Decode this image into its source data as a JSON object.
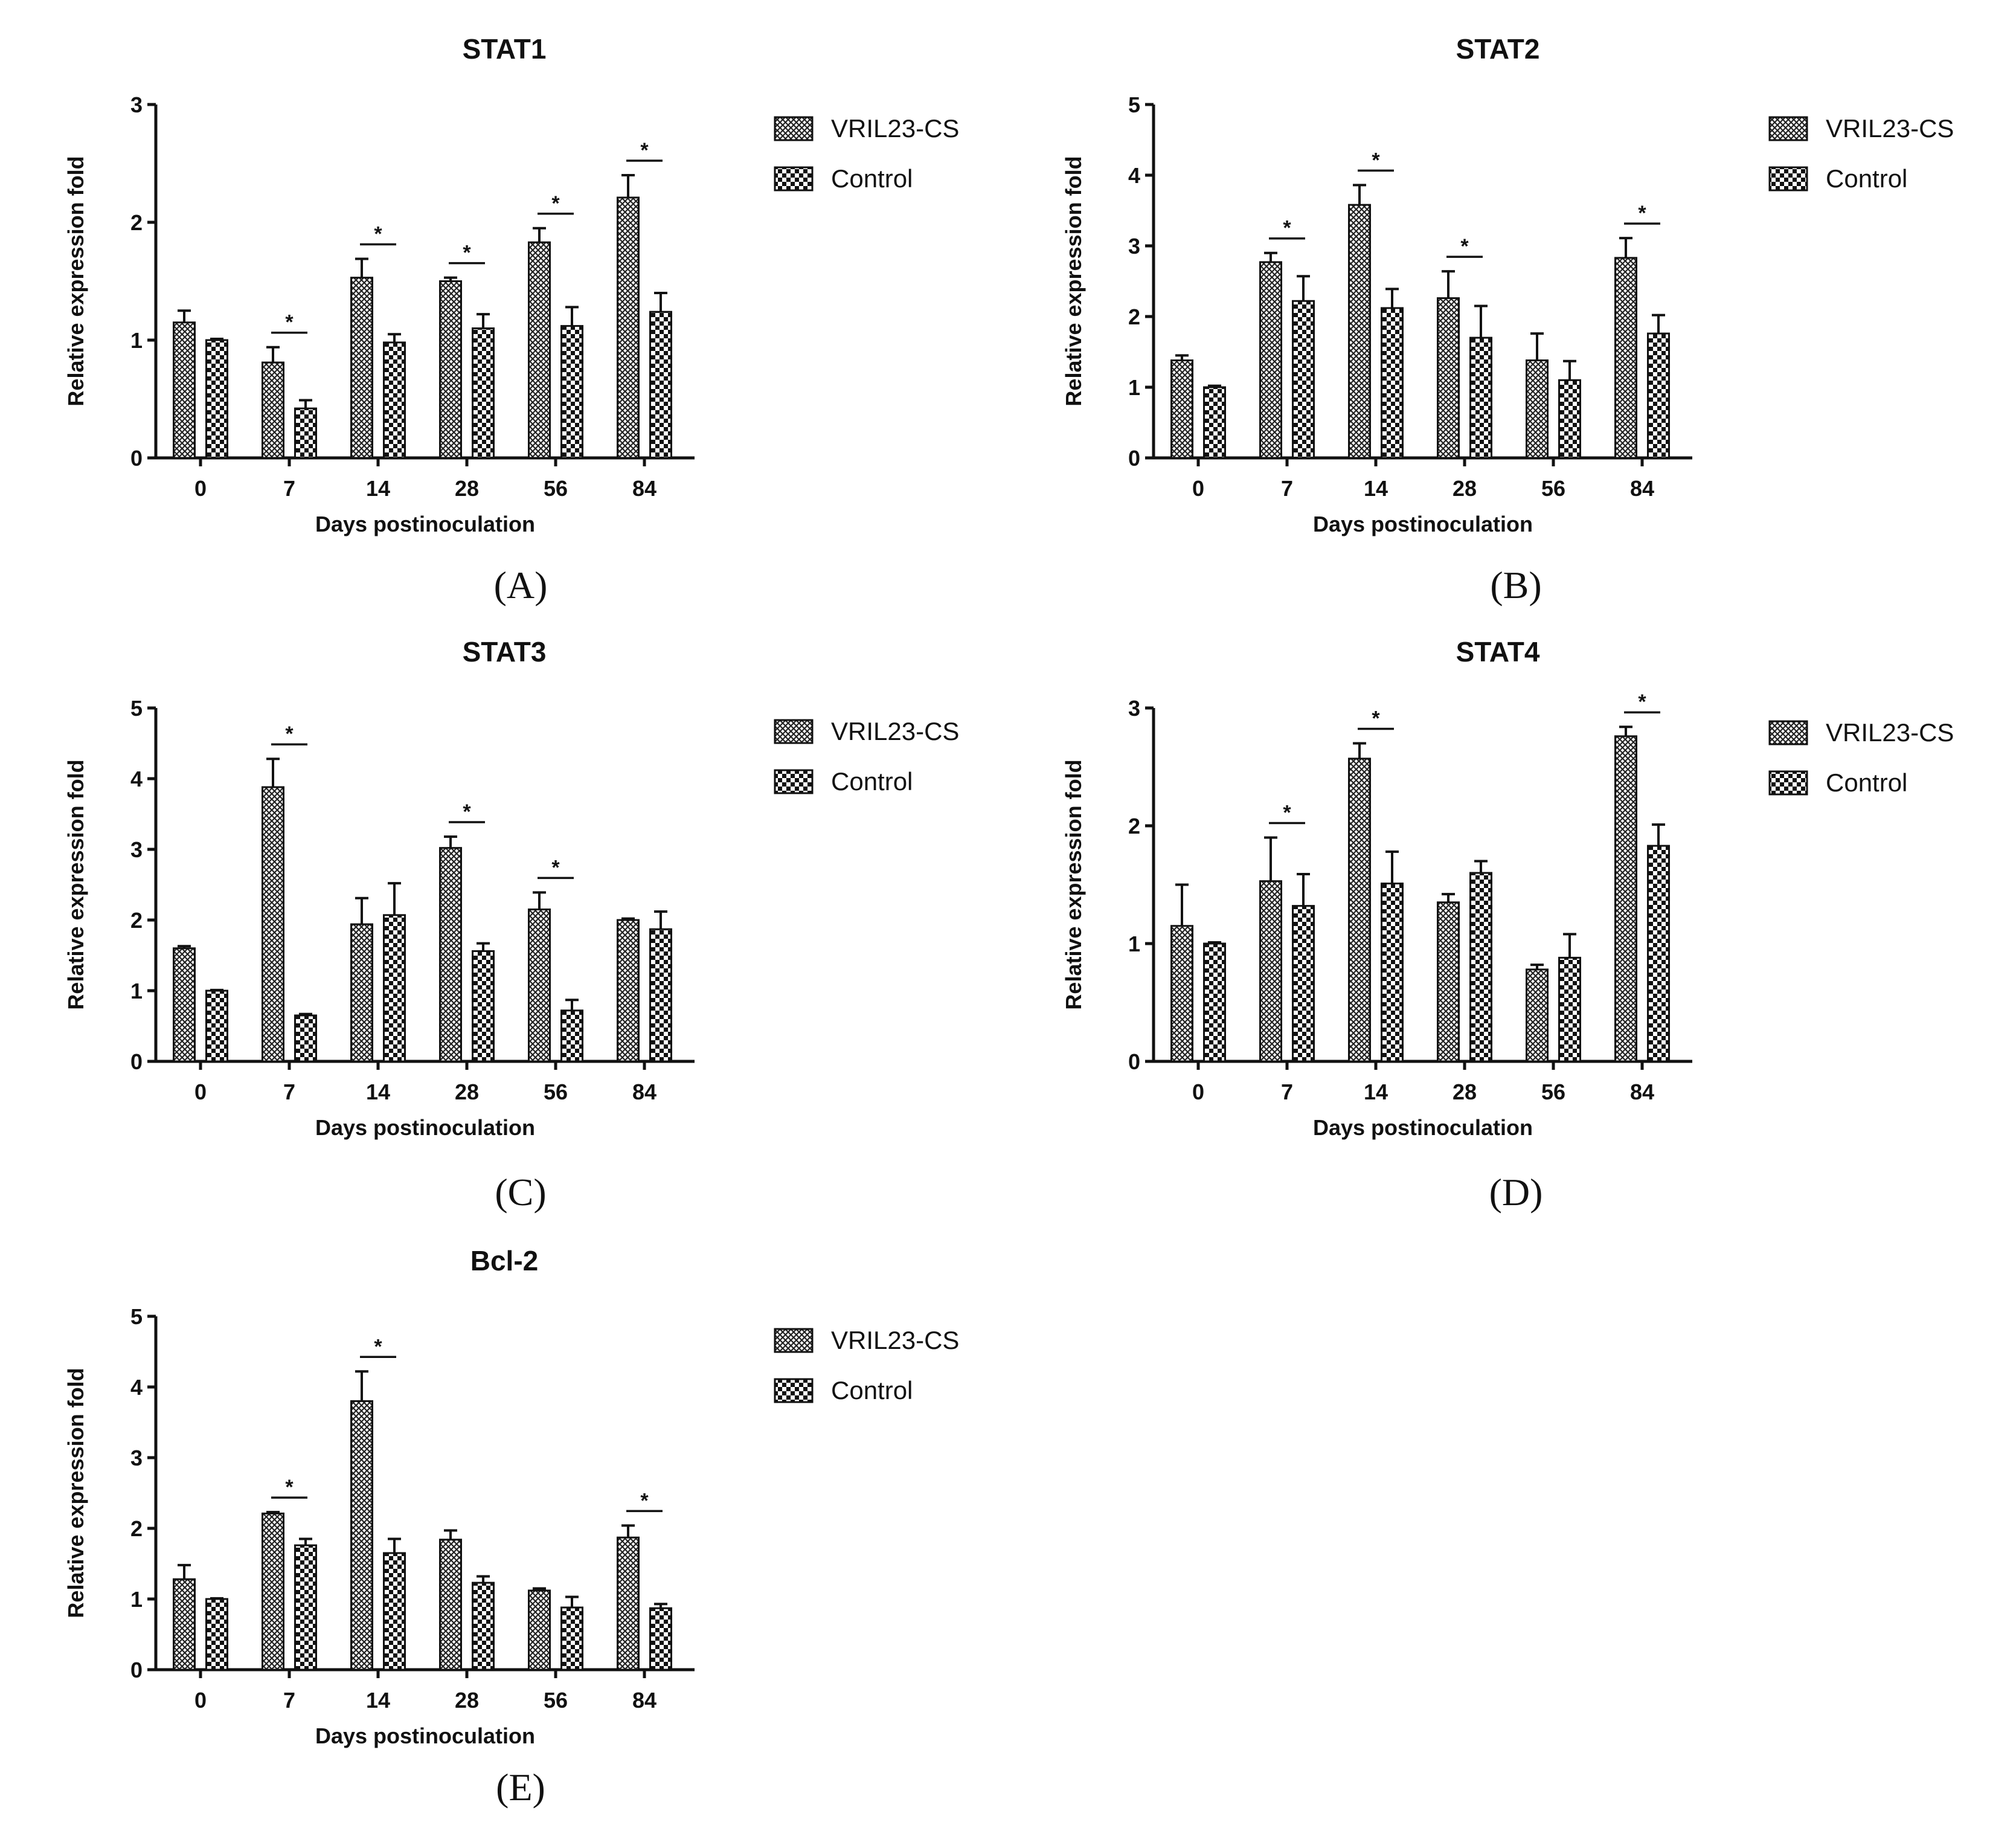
{
  "figure": {
    "legend": [
      "VRIL23-CS",
      "Control"
    ],
    "panel_labels": [
      "(A)",
      "(B)",
      "(C)",
      "(D)",
      "(E)"
    ],
    "colors": {
      "ink": "#111111",
      "background": "#ffffff"
    }
  },
  "chart_data": [
    {
      "type": "bar",
      "title": "STAT1",
      "panel": "(A)",
      "categories": [
        "0",
        "7",
        "14",
        "28",
        "56",
        "84"
      ],
      "xlabel": "Days postinoculation",
      "ylabel": "Relative expression fold",
      "ylim": [
        0,
        3
      ],
      "yticks": [
        0,
        1,
        2,
        3
      ],
      "series": [
        {
          "name": "VRIL23-CS",
          "pattern": "fine-hatch",
          "values": [
            1.15,
            0.81,
            1.53,
            1.5,
            1.83,
            2.21
          ],
          "errors": [
            0.1,
            0.13,
            0.16,
            0.03,
            0.12,
            0.19
          ]
        },
        {
          "name": "Control",
          "pattern": "checker",
          "values": [
            1.0,
            0.42,
            0.98,
            1.1,
            1.12,
            1.24
          ],
          "errors": [
            0.01,
            0.07,
            0.07,
            0.12,
            0.16,
            0.16
          ]
        }
      ],
      "significance": [
        1,
        2,
        3,
        4,
        5
      ],
      "significance_label": "*",
      "legend": [
        "VRIL23-CS",
        "Control"
      ]
    },
    {
      "type": "bar",
      "title": "STAT2",
      "panel": "(B)",
      "categories": [
        "0",
        "7",
        "14",
        "28",
        "56",
        "84"
      ],
      "xlabel": "Days postinoculation",
      "ylabel": "Relative expression fold",
      "ylim": [
        0,
        5
      ],
      "yticks": [
        0,
        1,
        2,
        3,
        4,
        5
      ],
      "series": [
        {
          "name": "VRIL23-CS",
          "pattern": "fine-hatch",
          "values": [
            1.38,
            2.77,
            3.58,
            2.26,
            1.38,
            2.83
          ],
          "errors": [
            0.07,
            0.13,
            0.28,
            0.38,
            0.38,
            0.28
          ]
        },
        {
          "name": "Control",
          "pattern": "checker",
          "values": [
            1.0,
            2.22,
            2.12,
            1.7,
            1.1,
            1.76
          ],
          "errors": [
            0.02,
            0.35,
            0.27,
            0.45,
            0.27,
            0.26
          ]
        }
      ],
      "significance": [
        1,
        2,
        3,
        5
      ],
      "significance_label": "*",
      "legend": [
        "VRIL23-CS",
        "Control"
      ]
    },
    {
      "type": "bar",
      "title": "STAT3",
      "panel": "(C)",
      "categories": [
        "0",
        "7",
        "14",
        "28",
        "56",
        "84"
      ],
      "xlabel": "Days postinoculation",
      "ylabel": "Relative expression fold",
      "ylim": [
        0,
        5
      ],
      "yticks": [
        0,
        1,
        2,
        3,
        4,
        5
      ],
      "series": [
        {
          "name": "VRIL23-CS",
          "pattern": "fine-hatch",
          "values": [
            1.6,
            3.88,
            1.94,
            3.02,
            2.15,
            2.0
          ],
          "errors": [
            0.03,
            0.4,
            0.37,
            0.16,
            0.24,
            0.02
          ]
        },
        {
          "name": "Control",
          "pattern": "checker",
          "values": [
            1.0,
            0.65,
            2.07,
            1.56,
            0.72,
            1.87
          ],
          "errors": [
            0.01,
            0.02,
            0.45,
            0.11,
            0.15,
            0.25
          ]
        }
      ],
      "significance": [
        1,
        3,
        4
      ],
      "significance_label": "*",
      "legend": [
        "VRIL23-CS",
        "Control"
      ]
    },
    {
      "type": "bar",
      "title": "STAT4",
      "panel": "(D)",
      "categories": [
        "0",
        "7",
        "14",
        "28",
        "56",
        "84"
      ],
      "xlabel": "Days postinoculation",
      "ylabel": "Relative expression fold",
      "ylim": [
        0,
        3
      ],
      "yticks": [
        0,
        1,
        2,
        3
      ],
      "series": [
        {
          "name": "VRIL23-CS",
          "pattern": "fine-hatch",
          "values": [
            1.15,
            1.53,
            2.57,
            1.35,
            0.78,
            2.76
          ],
          "errors": [
            0.35,
            0.37,
            0.13,
            0.07,
            0.04,
            0.08
          ]
        },
        {
          "name": "Control",
          "pattern": "checker",
          "values": [
            1.0,
            1.32,
            1.51,
            1.6,
            0.88,
            1.83
          ],
          "errors": [
            0.01,
            0.27,
            0.27,
            0.1,
            0.2,
            0.18
          ]
        }
      ],
      "significance": [
        1,
        2,
        5
      ],
      "significance_label": "*",
      "legend": [
        "VRIL23-CS",
        "Control"
      ]
    },
    {
      "type": "bar",
      "title": "Bcl-2",
      "panel": "(E)",
      "categories": [
        "0",
        "7",
        "14",
        "28",
        "56",
        "84"
      ],
      "xlabel": "Days postinoculation",
      "ylabel": "Relative expression fold",
      "ylim": [
        0,
        5
      ],
      "yticks": [
        0,
        1,
        2,
        3,
        4,
        5
      ],
      "series": [
        {
          "name": "VRIL23-CS",
          "pattern": "fine-hatch",
          "values": [
            1.28,
            2.21,
            3.8,
            1.84,
            1.12,
            1.87
          ],
          "errors": [
            0.2,
            0.02,
            0.42,
            0.13,
            0.03,
            0.17
          ]
        },
        {
          "name": "Control",
          "pattern": "checker",
          "values": [
            1.0,
            1.76,
            1.65,
            1.23,
            0.88,
            0.87
          ],
          "errors": [
            0.01,
            0.09,
            0.2,
            0.09,
            0.15,
            0.06
          ]
        }
      ],
      "significance": [
        1,
        2,
        5
      ],
      "significance_label": "*",
      "legend": [
        "VRIL23-CS",
        "Control"
      ]
    }
  ]
}
